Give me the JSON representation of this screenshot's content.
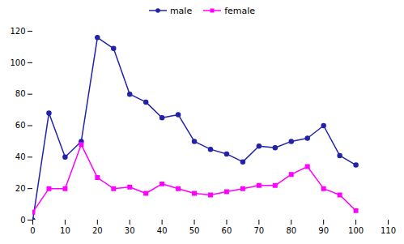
{
  "chart_data": {
    "type": "line",
    "x": [
      0,
      5,
      10,
      15,
      20,
      25,
      30,
      35,
      40,
      45,
      50,
      55,
      60,
      65,
      70,
      75,
      80,
      85,
      90,
      95,
      100
    ],
    "series": [
      {
        "name": "male",
        "color": "#2222AA",
        "marker": "circle",
        "values": [
          0,
          68,
          40,
          50,
          116,
          109,
          80,
          75,
          65,
          67,
          50,
          45,
          42,
          37,
          47,
          46,
          50,
          52,
          60,
          41,
          35
        ]
      },
      {
        "name": "female",
        "color": "#FF00FF",
        "marker": "square",
        "values": [
          5,
          20,
          20,
          48,
          27,
          20,
          21,
          17,
          23,
          20,
          17,
          16,
          18,
          20,
          22,
          22,
          29,
          34,
          20,
          16,
          6
        ]
      }
    ],
    "xlim": [
      0,
      110
    ],
    "ylim": [
      0,
      120
    ],
    "xticks": [
      0,
      10,
      20,
      30,
      40,
      50,
      60,
      70,
      80,
      90,
      100,
      110
    ],
    "yticks": [
      0,
      20,
      40,
      60,
      80,
      100,
      120
    ],
    "grid": false,
    "legend": "top"
  }
}
